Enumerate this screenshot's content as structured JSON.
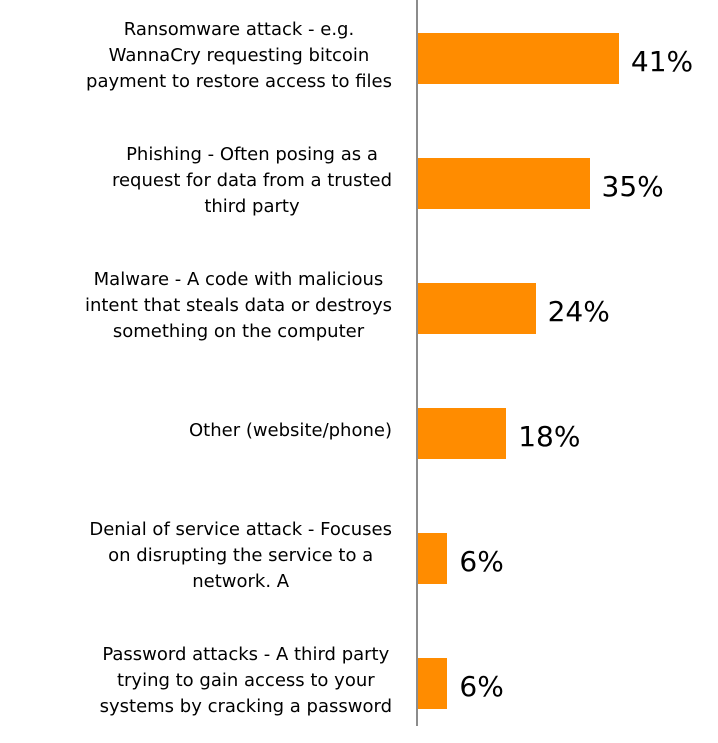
{
  "chart_data": {
    "type": "bar",
    "orientation": "horizontal",
    "title": "",
    "xlabel": "",
    "ylabel": "",
    "xlim": [
      0,
      45
    ],
    "grid": false,
    "legend": "none",
    "bar_color": "#ff8c00",
    "categories": [
      "Ransomware attack - e.g.\nWannaCry requesting bitcoin\npayment to restore access to files",
      "Phishing - Often posing as a\nrequest for data from a trusted\nthird party",
      "Malware - A code with malicious\nintent that steals data or destroys\nsomething on the computer",
      "Other (website/phone)",
      "Denial of service attack - Focuses\non disrupting the service to a\nnetwork. A",
      "Password attacks - A third party\ntrying to gain access to your\nsystems by cracking a password"
    ],
    "values": [
      41,
      35,
      24,
      18,
      6,
      6
    ],
    "data_labels": [
      "41%",
      "35%",
      "24%",
      "18%",
      "6%",
      "6%"
    ]
  }
}
